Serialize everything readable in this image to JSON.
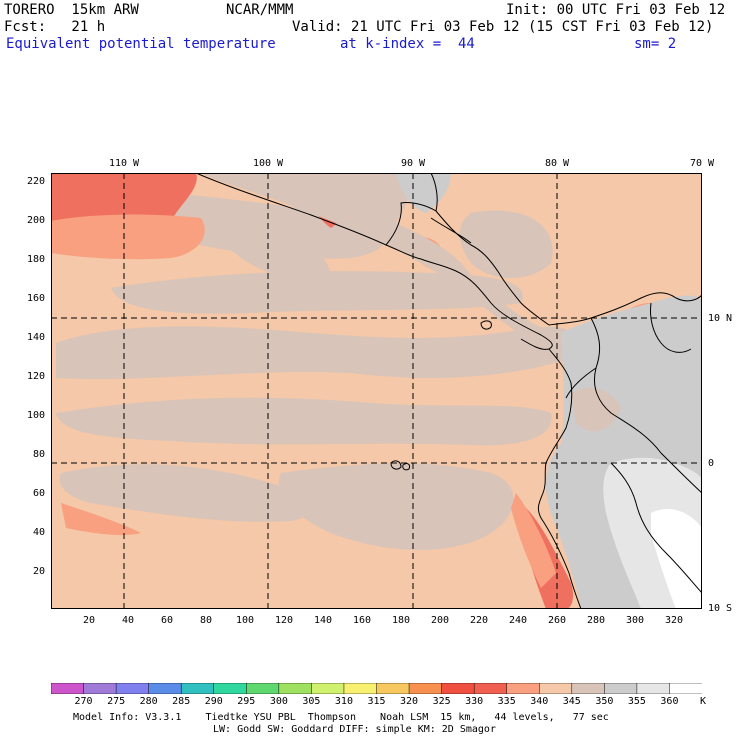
{
  "header": {
    "model": "TORERO  15km ARW",
    "org": "NCAR/MMM",
    "init": "Init: 00 UTC Fri 03 Feb 12",
    "fcst": "Fcst:   21 h",
    "valid": "Valid: 21 UTC Fri 03 Feb 12 (15 CST Fri 03 Feb 12)",
    "field": "Equivalent potential temperature",
    "level": "at k-index =  44",
    "smooth": "sm= 2"
  },
  "map": {
    "top_labels": [
      "110 W",
      "100 W",
      "90 W",
      "80 W",
      "70 W"
    ],
    "right_labels": [
      "10 N",
      "0",
      "10 S"
    ],
    "left_labels": [
      "220",
      "200",
      "180",
      "160",
      "140",
      "120",
      "100",
      "80",
      "60",
      "40",
      "20"
    ],
    "bottom_labels": [
      "20",
      "40",
      "60",
      "80",
      "100",
      "120",
      "140",
      "160",
      "180",
      "200",
      "220",
      "240",
      "260",
      "280",
      "300",
      "320"
    ]
  },
  "colorbar": {
    "labels": [
      "270",
      "275",
      "280",
      "285",
      "290",
      "295",
      "300",
      "305",
      "310",
      "315",
      "320",
      "325",
      "330",
      "335",
      "340",
      "345",
      "350",
      "355",
      "360"
    ],
    "unit": "K",
    "colors": [
      "#cc55cc",
      "#a07ad8",
      "#8080ee",
      "#5a8ce8",
      "#30c0c0",
      "#30d8a0",
      "#60d870",
      "#a0e060",
      "#d0f070",
      "#f8f070",
      "#f8c860",
      "#f89050",
      "#f05040",
      "#f06050",
      "#f8a080",
      "#f4c8a8",
      "#d8c4b8",
      "#cccccc",
      "#e6e6e6",
      "#ffffff"
    ]
  },
  "footer": {
    "line1": "Model Info: V3.3.1    Tiedtke YSU PBL  Thompson    Noah LSM  15 km,   44 levels,   77 sec",
    "line2": "LW: Godd SW: Goddard DIFF: simple KM: 2D Smagor"
  }
}
